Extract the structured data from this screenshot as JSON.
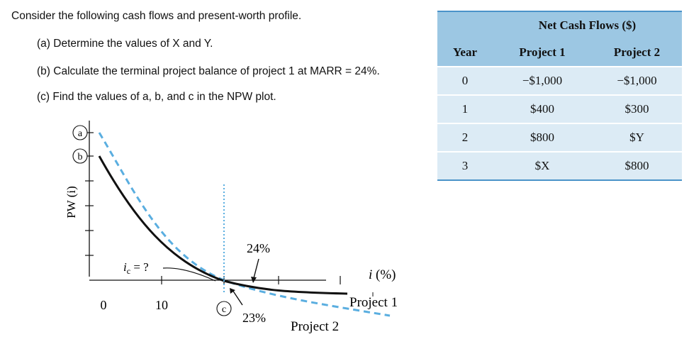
{
  "question": {
    "main": "Consider the following cash flows and present-worth profile.",
    "part_a": "(a) Determine the values of X and Y.",
    "part_b": "(b) Calculate the terminal project balance of project 1 at MARR = 24%.",
    "part_c": "(c) Find the values of a, b, and c in the NPW plot."
  },
  "table": {
    "group_header": "Net Cash Flows ($)",
    "columns": [
      "Year",
      "Project 1",
      "Project 2"
    ],
    "rows": [
      {
        "year": "0",
        "p1": "−$1,000",
        "p2": "−$1,000"
      },
      {
        "year": "1",
        "p1": "$400",
        "p2": "$300"
      },
      {
        "year": "2",
        "p1": "$800",
        "p2": "$Y"
      },
      {
        "year": "3",
        "p1": "$X",
        "p2": "$800"
      }
    ],
    "header_color": "#9cc7e3",
    "body_color": "#dcebf5",
    "rule_color": "#4a93c9"
  },
  "plot": {
    "y_axis_label": "PW (i)",
    "x_axis_label": "i (%)",
    "marker_a": "a",
    "marker_b": "b",
    "marker_c": "c",
    "tick_0": "0",
    "tick_10": "10",
    "ic_label": "i",
    "ic_sub": "c",
    "ic_suffix": " = ?",
    "label_24": "24%",
    "label_23": "23%",
    "project1_label": "Project 1",
    "project2_label": "Project 2",
    "project2_color": "#5aaee0"
  }
}
